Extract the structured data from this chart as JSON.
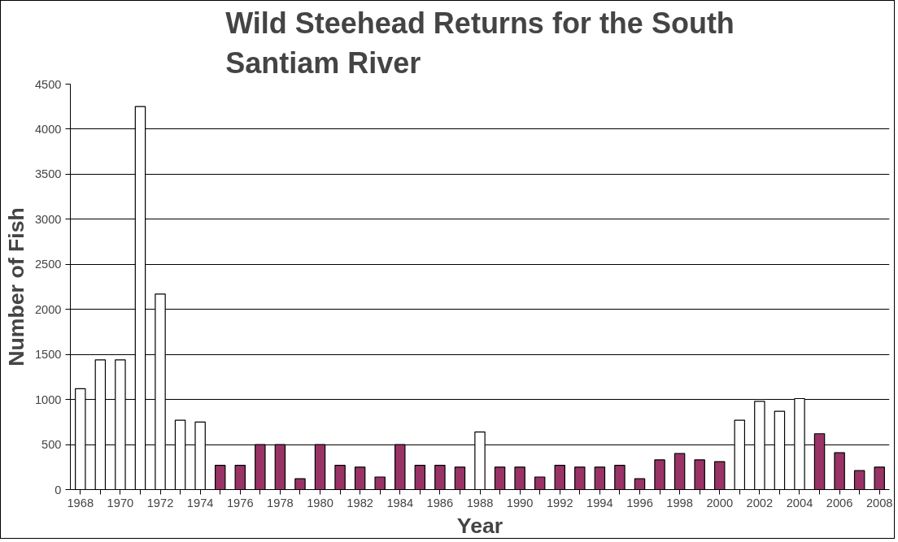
{
  "chart_data": {
    "type": "bar",
    "title": "Wild Steehead Returns for the South Santiam River",
    "xlabel": "Year",
    "ylabel": "Number of Fish",
    "categories": [
      "1968",
      null,
      "1970",
      null,
      "1972",
      null,
      "1974",
      null,
      "1976",
      null,
      "1978",
      null,
      "1980",
      null,
      "1982",
      null,
      "1984",
      null,
      "1986",
      null,
      "1988",
      null,
      "1990",
      null,
      "1992",
      null,
      "1994",
      null,
      "1996",
      null,
      "1998",
      null,
      "2000",
      null,
      "2002",
      null,
      "2004",
      null,
      "2006",
      null,
      "2008"
    ],
    "values": [
      1120,
      1440,
      1440,
      4250,
      2170,
      770,
      750,
      270,
      270,
      500,
      500,
      120,
      500,
      270,
      250,
      140,
      500,
      270,
      270,
      250,
      640,
      250,
      250,
      140,
      270,
      250,
      250,
      270,
      120,
      330,
      400,
      330,
      310,
      770,
      980,
      870,
      1010,
      620,
      410,
      210,
      250
    ],
    "colors": [
      "#ffffff",
      "#ffffff",
      "#ffffff",
      "#ffffff",
      "#ffffff",
      "#ffffff",
      "#ffffff",
      "#993366",
      "#993366",
      "#993366",
      "#993366",
      "#993366",
      "#993366",
      "#993366",
      "#993366",
      "#993366",
      "#993366",
      "#993366",
      "#993366",
      "#993366",
      "#ffffff",
      "#993366",
      "#993366",
      "#993366",
      "#993366",
      "#993366",
      "#993366",
      "#993366",
      "#993366",
      "#993366",
      "#993366",
      "#993366",
      "#993366",
      "#ffffff",
      "#ffffff",
      "#ffffff",
      "#ffffff",
      "#993366",
      "#993366",
      "#993366",
      "#993366"
    ],
    "ylim": [
      0,
      4500
    ],
    "yticks": [
      0,
      500,
      1000,
      1500,
      2000,
      2500,
      3000,
      3500,
      4000,
      4500
    ],
    "grid": "y"
  }
}
